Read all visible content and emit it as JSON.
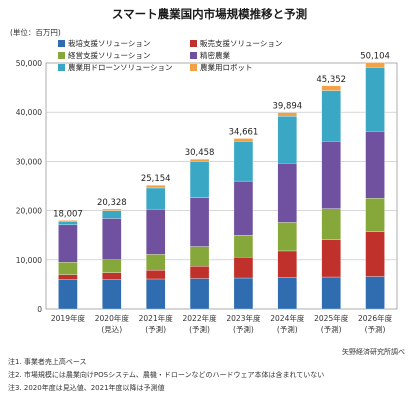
{
  "chart_data": {
    "type": "bar",
    "stacked": true,
    "title": "スマート農業国内市場規模推移と予測",
    "unit": "(単位：百万円)",
    "categories": [
      [
        "2019年度",
        ""
      ],
      [
        "2020年度",
        "(見込)"
      ],
      [
        "2021年度",
        "(予測)"
      ],
      [
        "2022年度",
        "(予測)"
      ],
      [
        "2023年度",
        "(予測)"
      ],
      [
        "2024年度",
        "(予測)"
      ],
      [
        "2025年度",
        "(予測)"
      ],
      [
        "2026年度",
        "(予測)"
      ]
    ],
    "ylim": [
      0,
      50000
    ],
    "yticks": [
      "0",
      "10,000",
      "20,000",
      "30,000",
      "40,000",
      "50,000"
    ],
    "totals": [
      "18,007",
      "20,328",
      "25,154",
      "30,458",
      "34,661",
      "39,894",
      "45,352",
      "50,104"
    ],
    "series": [
      {
        "name": "栽培支援ソリューション",
        "color": "#2f6cb0",
        "values": [
          6000,
          6000,
          6100,
          6200,
          6300,
          6400,
          6500,
          6600
        ]
      },
      {
        "name": "販売支援ソリューション",
        "color": "#c0312b",
        "values": [
          1000,
          1400,
          1800,
          2500,
          4200,
          5400,
          7600,
          9100
        ]
      },
      {
        "name": "経営支援ソリューション",
        "color": "#86a83a",
        "values": [
          2500,
          2600,
          3200,
          4000,
          4500,
          5800,
          6300,
          6800
        ]
      },
      {
        "name": "精密農業",
        "color": "#7051a0",
        "values": [
          7600,
          8400,
          9200,
          9900,
          11000,
          12000,
          13700,
          13600
        ]
      },
      {
        "name": "農業用ドローンソリューション",
        "color": "#3aa8c4",
        "values": [
          700,
          1600,
          4300,
          7400,
          8100,
          9600,
          10300,
          13000
        ]
      },
      {
        "name": "農業用ロボット",
        "color": "#f3a145",
        "values": [
          207,
          328,
          554,
          458,
          561,
          694,
          952,
          1004
        ]
      }
    ]
  },
  "source": "矢野経済研究所調べ",
  "notes": [
    "注1. 事業者売上高ベース",
    "注2. 市場規模には農業向けPOSシステム、農機・ドローンなどのハードウェア本体は含まれていない",
    "注3. 2020年度は見込値、2021年度以降は予測値"
  ]
}
